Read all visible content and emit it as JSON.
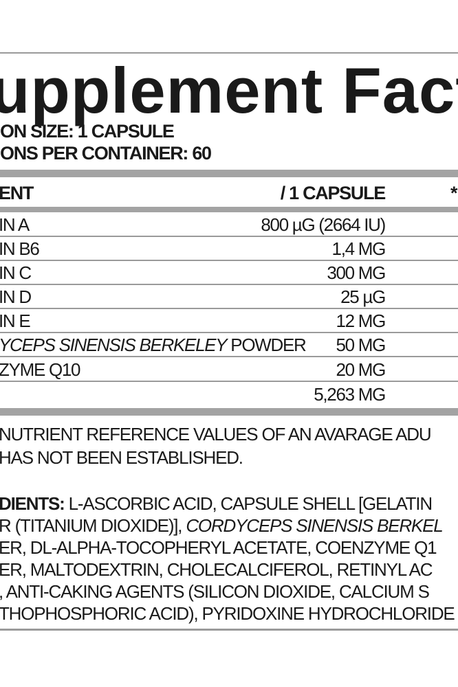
{
  "title": "upplement Fact",
  "serving_size": "ON SIZE: 1 CAPSULE",
  "servings_per_container": "ONS PER CONTAINER: 60",
  "table": {
    "header": {
      "name": "ENT",
      "amount": "/ 1 CAPSULE",
      "extra": "*"
    },
    "rows": [
      {
        "name": "IN A",
        "name_italic": "",
        "amount": "800 µG (2664 IU)"
      },
      {
        "name": "IN B6",
        "name_italic": "",
        "amount": "1,4 MG"
      },
      {
        "name": "IN C",
        "name_italic": "",
        "amount": "300 MG"
      },
      {
        "name": "IN D",
        "name_italic": "",
        "amount": "25 µG"
      },
      {
        "name": "IN E",
        "name_italic": "",
        "amount": "12 MG"
      },
      {
        "name": " POWDER",
        "name_italic": "YCEPS SINENSIS BERKELEY",
        "amount": "50 MG"
      },
      {
        "name": "ZYME Q10",
        "name_italic": "",
        "amount": "20 MG"
      },
      {
        "name": "",
        "name_italic": "",
        "amount": "5,263 MG"
      }
    ]
  },
  "footnote": {
    "line1": "NUTRIENT REFERENCE VALUES OF AN AVARAGE ADU",
    "line2": "HAS NOT BEEN ESTABLISHED."
  },
  "ingredients": {
    "label": "DIENTS:",
    "line1": " L-ASCORBIC ACID, CAPSULE SHELL [GELATIN",
    "line2_a": "R (TITANIUM DIOXIDE)], ",
    "line2_italic": "CORDYCEPS SINENSIS BERKEL",
    "line3": "ER, DL-ALPHA-TOCOPHERYL ACETATE, COENZYME Q1",
    "line4": "ER, MALTODEXTRIN, CHOLECALCIFEROL, RETINYL AC",
    "line5": ", ANTI-CAKING AGENTS (SILICON DIOXIDE, CALCIUM S",
    "line6": "THOPHOSPHORIC ACID), PYRIDOXINE HYDROCHLORIDE"
  }
}
